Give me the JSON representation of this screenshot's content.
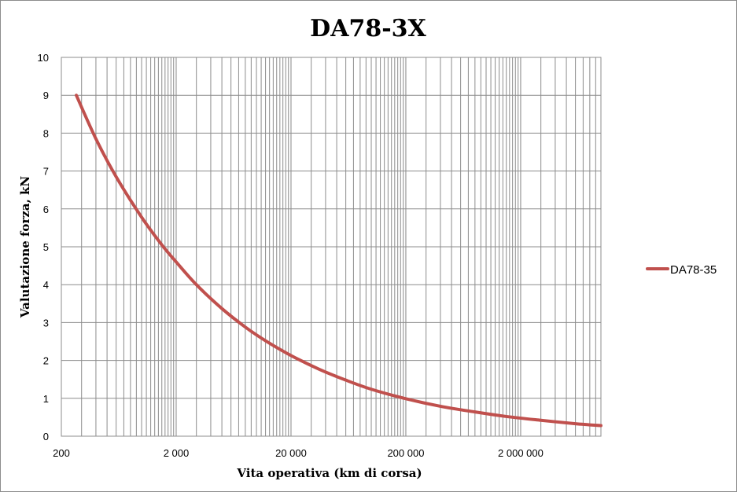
{
  "chart_data": {
    "type": "line",
    "title": "DA78-3X",
    "xlabel": "Vita operativa (km di corsa)",
    "ylabel": "Valutazione forza, kN",
    "x_scale": "log",
    "xlim": [
      200,
      10000000
    ],
    "ylim": [
      0,
      10
    ],
    "x_tick_values": [
      200,
      2000,
      20000,
      200000,
      2000000
    ],
    "x_tick_labels": [
      "200",
      "2 000",
      "20 000",
      "200 000",
      "2 000 000"
    ],
    "y_ticks": [
      0,
      1,
      2,
      3,
      4,
      5,
      6,
      7,
      8,
      9,
      10
    ],
    "grid": true,
    "legend_position": "right",
    "series": [
      {
        "name": "DA78-35",
        "color": "#c0504d",
        "x": [
          270,
          400,
          600,
          1000,
          1500,
          2000,
          3000,
          5000,
          8000,
          12000,
          20000,
          35000,
          60000,
          100000,
          200000,
          400000,
          800000,
          1500000,
          3000000,
          6000000,
          10000000
        ],
        "y": [
          9.0,
          7.85,
          6.85,
          5.78,
          5.05,
          4.6,
          4.0,
          3.37,
          2.88,
          2.52,
          2.13,
          1.77,
          1.48,
          1.24,
          0.99,
          0.79,
          0.64,
          0.52,
          0.42,
          0.33,
          0.28
        ]
      }
    ]
  }
}
